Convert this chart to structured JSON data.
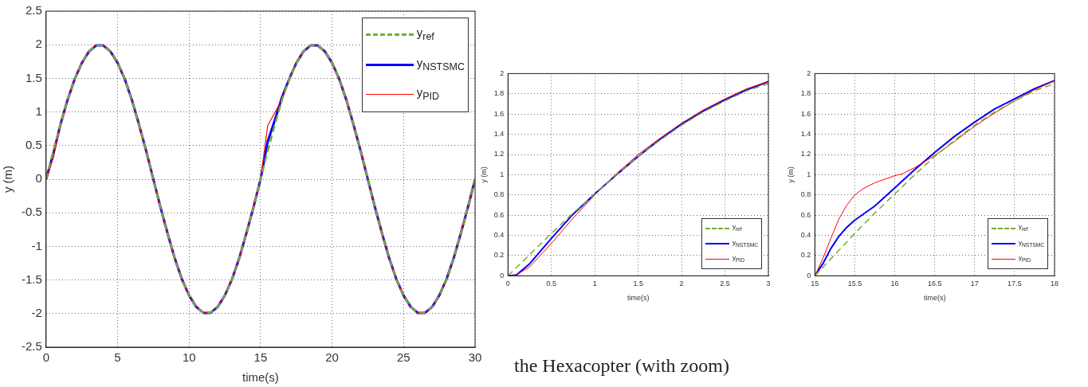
{
  "chart_data": [
    {
      "type": "line",
      "xlabel": "time(s)",
      "ylabel": "y (m)",
      "xlim": [
        0,
        30
      ],
      "xticks": [
        0,
        5,
        10,
        15,
        20,
        25,
        30
      ],
      "ylim": [
        -2.5,
        2.5
      ],
      "yticks": [
        -2.5,
        -2,
        -1.5,
        -1,
        -0.5,
        0,
        0.5,
        1,
        1.5,
        2,
        2.5
      ],
      "grid": true,
      "legend": "top right",
      "marker": "none",
      "x": [
        0,
        0.5,
        1,
        1.5,
        2,
        2.5,
        3,
        3.5,
        4,
        4.5,
        5,
        5.5,
        6,
        6.5,
        7,
        7.5,
        8,
        8.5,
        9,
        9.5,
        10,
        10.5,
        11,
        11.5,
        12,
        12.5,
        13,
        13.5,
        14,
        14.5,
        15,
        15.5,
        16,
        16.5,
        17,
        17.5,
        18,
        18.5,
        19,
        19.5,
        20,
        20.5,
        21,
        21.5,
        22,
        22.5,
        23,
        23.5,
        24,
        24.5,
        25,
        25.5,
        26,
        26.5,
        27,
        27.5,
        28,
        28.5,
        29,
        29.5,
        30
      ],
      "series": [
        {
          "name": "y$_{ref}$",
          "color": "#77ac30",
          "line_style": "dashed",
          "values": [
            0,
            0.42,
            0.81,
            1.18,
            1.49,
            1.73,
            1.9,
            1.99,
            1.99,
            1.9,
            1.73,
            1.49,
            1.18,
            0.81,
            0.42,
            0,
            -0.42,
            -0.81,
            -1.18,
            -1.49,
            -1.73,
            -1.9,
            -1.99,
            -1.99,
            -1.9,
            -1.73,
            -1.49,
            -1.18,
            -0.81,
            -0.42,
            0,
            0.42,
            0.81,
            1.18,
            1.49,
            1.73,
            1.9,
            1.99,
            1.99,
            1.9,
            1.73,
            1.49,
            1.18,
            0.81,
            0.42,
            0,
            -0.42,
            -0.81,
            -1.18,
            -1.49,
            -1.73,
            -1.9,
            -1.99,
            -1.99,
            -1.9,
            -1.73,
            -1.49,
            -1.18,
            -0.81,
            -0.42,
            0
          ]
        },
        {
          "name": "y$_{NSTSMC}$",
          "color": "#0000ff",
          "line_style": "solid",
          "values": [
            0,
            0.37,
            0.81,
            1.18,
            1.49,
            1.73,
            1.9,
            1.99,
            1.99,
            1.9,
            1.73,
            1.49,
            1.18,
            0.81,
            0.42,
            0,
            -0.42,
            -0.81,
            -1.18,
            -1.49,
            -1.73,
            -1.9,
            -1.99,
            -1.99,
            -1.9,
            -1.73,
            -1.49,
            -1.18,
            -0.81,
            -0.42,
            0,
            0.56,
            0.88,
            1.22,
            1.49,
            1.73,
            1.9,
            1.99,
            1.99,
            1.9,
            1.73,
            1.49,
            1.18,
            0.81,
            0.42,
            0,
            -0.42,
            -0.81,
            -1.18,
            -1.49,
            -1.73,
            -1.9,
            -1.99,
            -1.99,
            -1.9,
            -1.73,
            -1.49,
            -1.18,
            -0.81,
            -0.42,
            0
          ]
        },
        {
          "name": "y$_{PID}$",
          "color": "#ff0000",
          "line_style": "solid",
          "values": [
            0,
            0.32,
            0.8,
            1.18,
            1.49,
            1.73,
            1.9,
            1.99,
            1.99,
            1.9,
            1.73,
            1.49,
            1.18,
            0.81,
            0.42,
            0,
            -0.42,
            -0.81,
            -1.18,
            -1.49,
            -1.73,
            -1.9,
            -1.99,
            -1.99,
            -1.9,
            -1.73,
            -1.49,
            -1.18,
            -0.81,
            -0.42,
            0,
            0.8,
            0.99,
            1.19,
            1.48,
            1.73,
            1.9,
            1.99,
            1.99,
            1.9,
            1.73,
            1.49,
            1.18,
            0.81,
            0.42,
            0,
            -0.42,
            -0.81,
            -1.18,
            -1.49,
            -1.73,
            -1.9,
            -1.99,
            -1.99,
            -1.9,
            -1.73,
            -1.49,
            -1.18,
            -0.81,
            -0.42,
            0
          ]
        }
      ]
    },
    {
      "type": "line",
      "xlabel": "time(s)",
      "ylabel": "y (m)",
      "xlim": [
        0,
        3
      ],
      "xticks": [
        0,
        0.5,
        1,
        1.5,
        2,
        2.5,
        3
      ],
      "ylim": [
        0,
        2
      ],
      "yticks": [
        0,
        0.2,
        0.4,
        0.6,
        0.8,
        1,
        1.2,
        1.4,
        1.6,
        1.8,
        2
      ],
      "grid": true,
      "legend": "bottom right",
      "marker": "none",
      "series": [
        {
          "name": "y$_{ref}$",
          "color": "#77ac30",
          "line_style": "dashed",
          "x": [
            0,
            0.25,
            0.5,
            0.75,
            1,
            1.25,
            1.5,
            1.75,
            2,
            2.25,
            2.5,
            2.75,
            3
          ],
          "values": [
            0,
            0.21,
            0.42,
            0.62,
            0.81,
            1,
            1.18,
            1.34,
            1.49,
            1.62,
            1.73,
            1.83,
            1.9
          ]
        },
        {
          "name": "y$_{NSTSMC}$",
          "color": "#0000ff",
          "line_style": "solid",
          "x": [
            0,
            0.1,
            0.25,
            0.5,
            0.75,
            1,
            1.25,
            1.5,
            1.75,
            2,
            2.25,
            2.5,
            2.75,
            3
          ],
          "values": [
            0,
            0.01,
            0.12,
            0.37,
            0.61,
            0.81,
            1,
            1.18,
            1.35,
            1.5,
            1.63,
            1.74,
            1.84,
            1.92
          ]
        },
        {
          "name": "y$_{PID}$",
          "color": "#ff0000",
          "line_style": "solid",
          "x": [
            0,
            0.1,
            0.25,
            0.5,
            0.75,
            1,
            1.25,
            1.5,
            1.75,
            2,
            2.25,
            2.5,
            2.75,
            3
          ],
          "values": [
            0,
            0.01,
            0.09,
            0.32,
            0.57,
            0.8,
            1.01,
            1.2,
            1.36,
            1.51,
            1.64,
            1.75,
            1.85,
            1.92
          ]
        }
      ],
      "annotations": [
        "the Hexacopter (with zoom)"
      ]
    },
    {
      "type": "line",
      "xlabel": "time(s)",
      "ylabel": "y (m)",
      "xlim": [
        15,
        18
      ],
      "xticks": [
        15,
        15.5,
        16,
        16.5,
        17,
        17.5,
        18
      ],
      "ylim": [
        0,
        2
      ],
      "yticks": [
        0,
        0.2,
        0.4,
        0.6,
        0.8,
        1,
        1.2,
        1.4,
        1.6,
        1.8,
        2
      ],
      "grid": true,
      "legend": "bottom right",
      "marker": "none",
      "series": [
        {
          "name": "y$_{ref}$",
          "color": "#77ac30",
          "line_style": "dashed",
          "x": [
            15,
            15.25,
            15.5,
            15.75,
            16,
            16.25,
            16.5,
            16.75,
            17,
            17.25,
            17.5,
            17.75,
            18
          ],
          "values": [
            0,
            0.21,
            0.42,
            0.62,
            0.81,
            1,
            1.18,
            1.34,
            1.49,
            1.62,
            1.73,
            1.83,
            1.9
          ]
        },
        {
          "name": "y$_{NSTSMC}$",
          "color": "#0000ff",
          "line_style": "solid",
          "x": [
            15,
            15.1,
            15.2,
            15.3,
            15.4,
            15.5,
            15.75,
            16,
            16.25,
            16.5,
            16.75,
            17,
            17.25,
            17.5,
            17.75,
            18
          ],
          "values": [
            0,
            0.12,
            0.27,
            0.39,
            0.48,
            0.55,
            0.69,
            0.87,
            1.05,
            1.22,
            1.38,
            1.52,
            1.65,
            1.75,
            1.85,
            1.93
          ]
        },
        {
          "name": "y$_{PID}$",
          "color": "#ff0000",
          "line_style": "solid",
          "x": [
            15,
            15.1,
            15.2,
            15.3,
            15.4,
            15.5,
            15.6,
            15.75,
            16,
            16.1,
            16.25,
            16.5,
            16.75,
            17,
            17.25,
            17.5,
            17.75,
            18
          ],
          "values": [
            0,
            0.17,
            0.37,
            0.56,
            0.7,
            0.8,
            0.86,
            0.92,
            0.99,
            1.01,
            1.07,
            1.19,
            1.33,
            1.48,
            1.61,
            1.73,
            1.84,
            1.93
          ]
        }
      ]
    }
  ]
}
